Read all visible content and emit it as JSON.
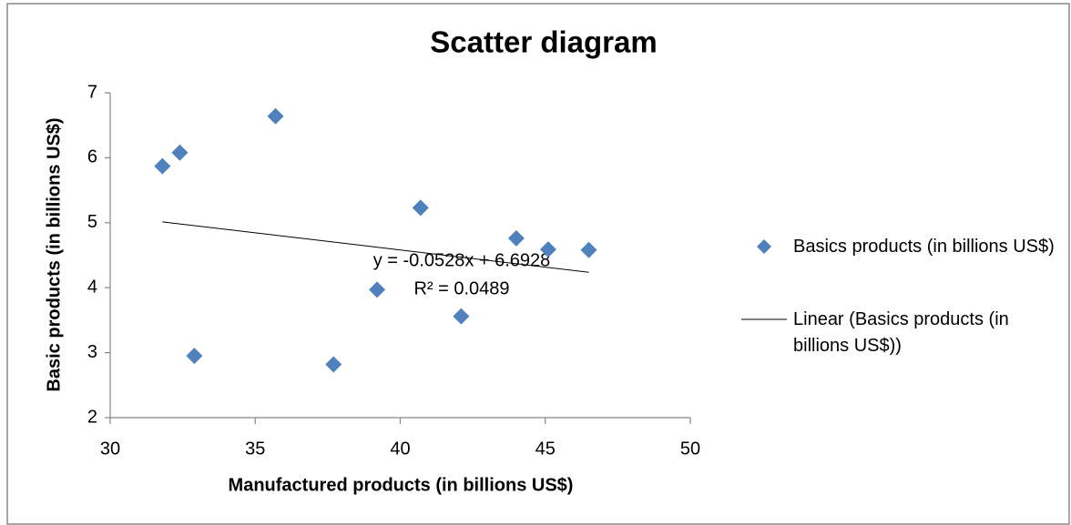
{
  "chart_data": {
    "type": "scatter",
    "title": "Scatter diagram",
    "x_label": "Manufactured products (in billions US$)",
    "y_label": "Basic products (in billions US$)",
    "series": [
      {
        "name": "Basics products (in billions US$)",
        "color": "#4f81bd",
        "x": [
          31.8,
          32.4,
          32.9,
          35.7,
          37.7,
          39.2,
          40.7,
          42.1,
          44.0,
          45.1,
          46.5
        ],
        "values": [
          5.87,
          6.08,
          2.95,
          6.64,
          2.82,
          3.97,
          5.23,
          3.56,
          4.76,
          4.59,
          4.58
        ]
      }
    ],
    "trendline": {
      "name": "Linear (Basics products (in billions US$))",
      "slope": -0.0528,
      "intercept": 6.6928,
      "equation": "y = -0.0528x + 6.6928",
      "r_squared": "R² = 0.0489",
      "color": "#000000"
    },
    "xlim": [
      30,
      50
    ],
    "xticks": [
      30,
      35,
      40,
      45,
      50
    ],
    "ylim": [
      2,
      7
    ],
    "yticks": [
      2,
      3,
      4,
      5,
      6,
      7
    ],
    "grid": false,
    "legend": "right"
  }
}
